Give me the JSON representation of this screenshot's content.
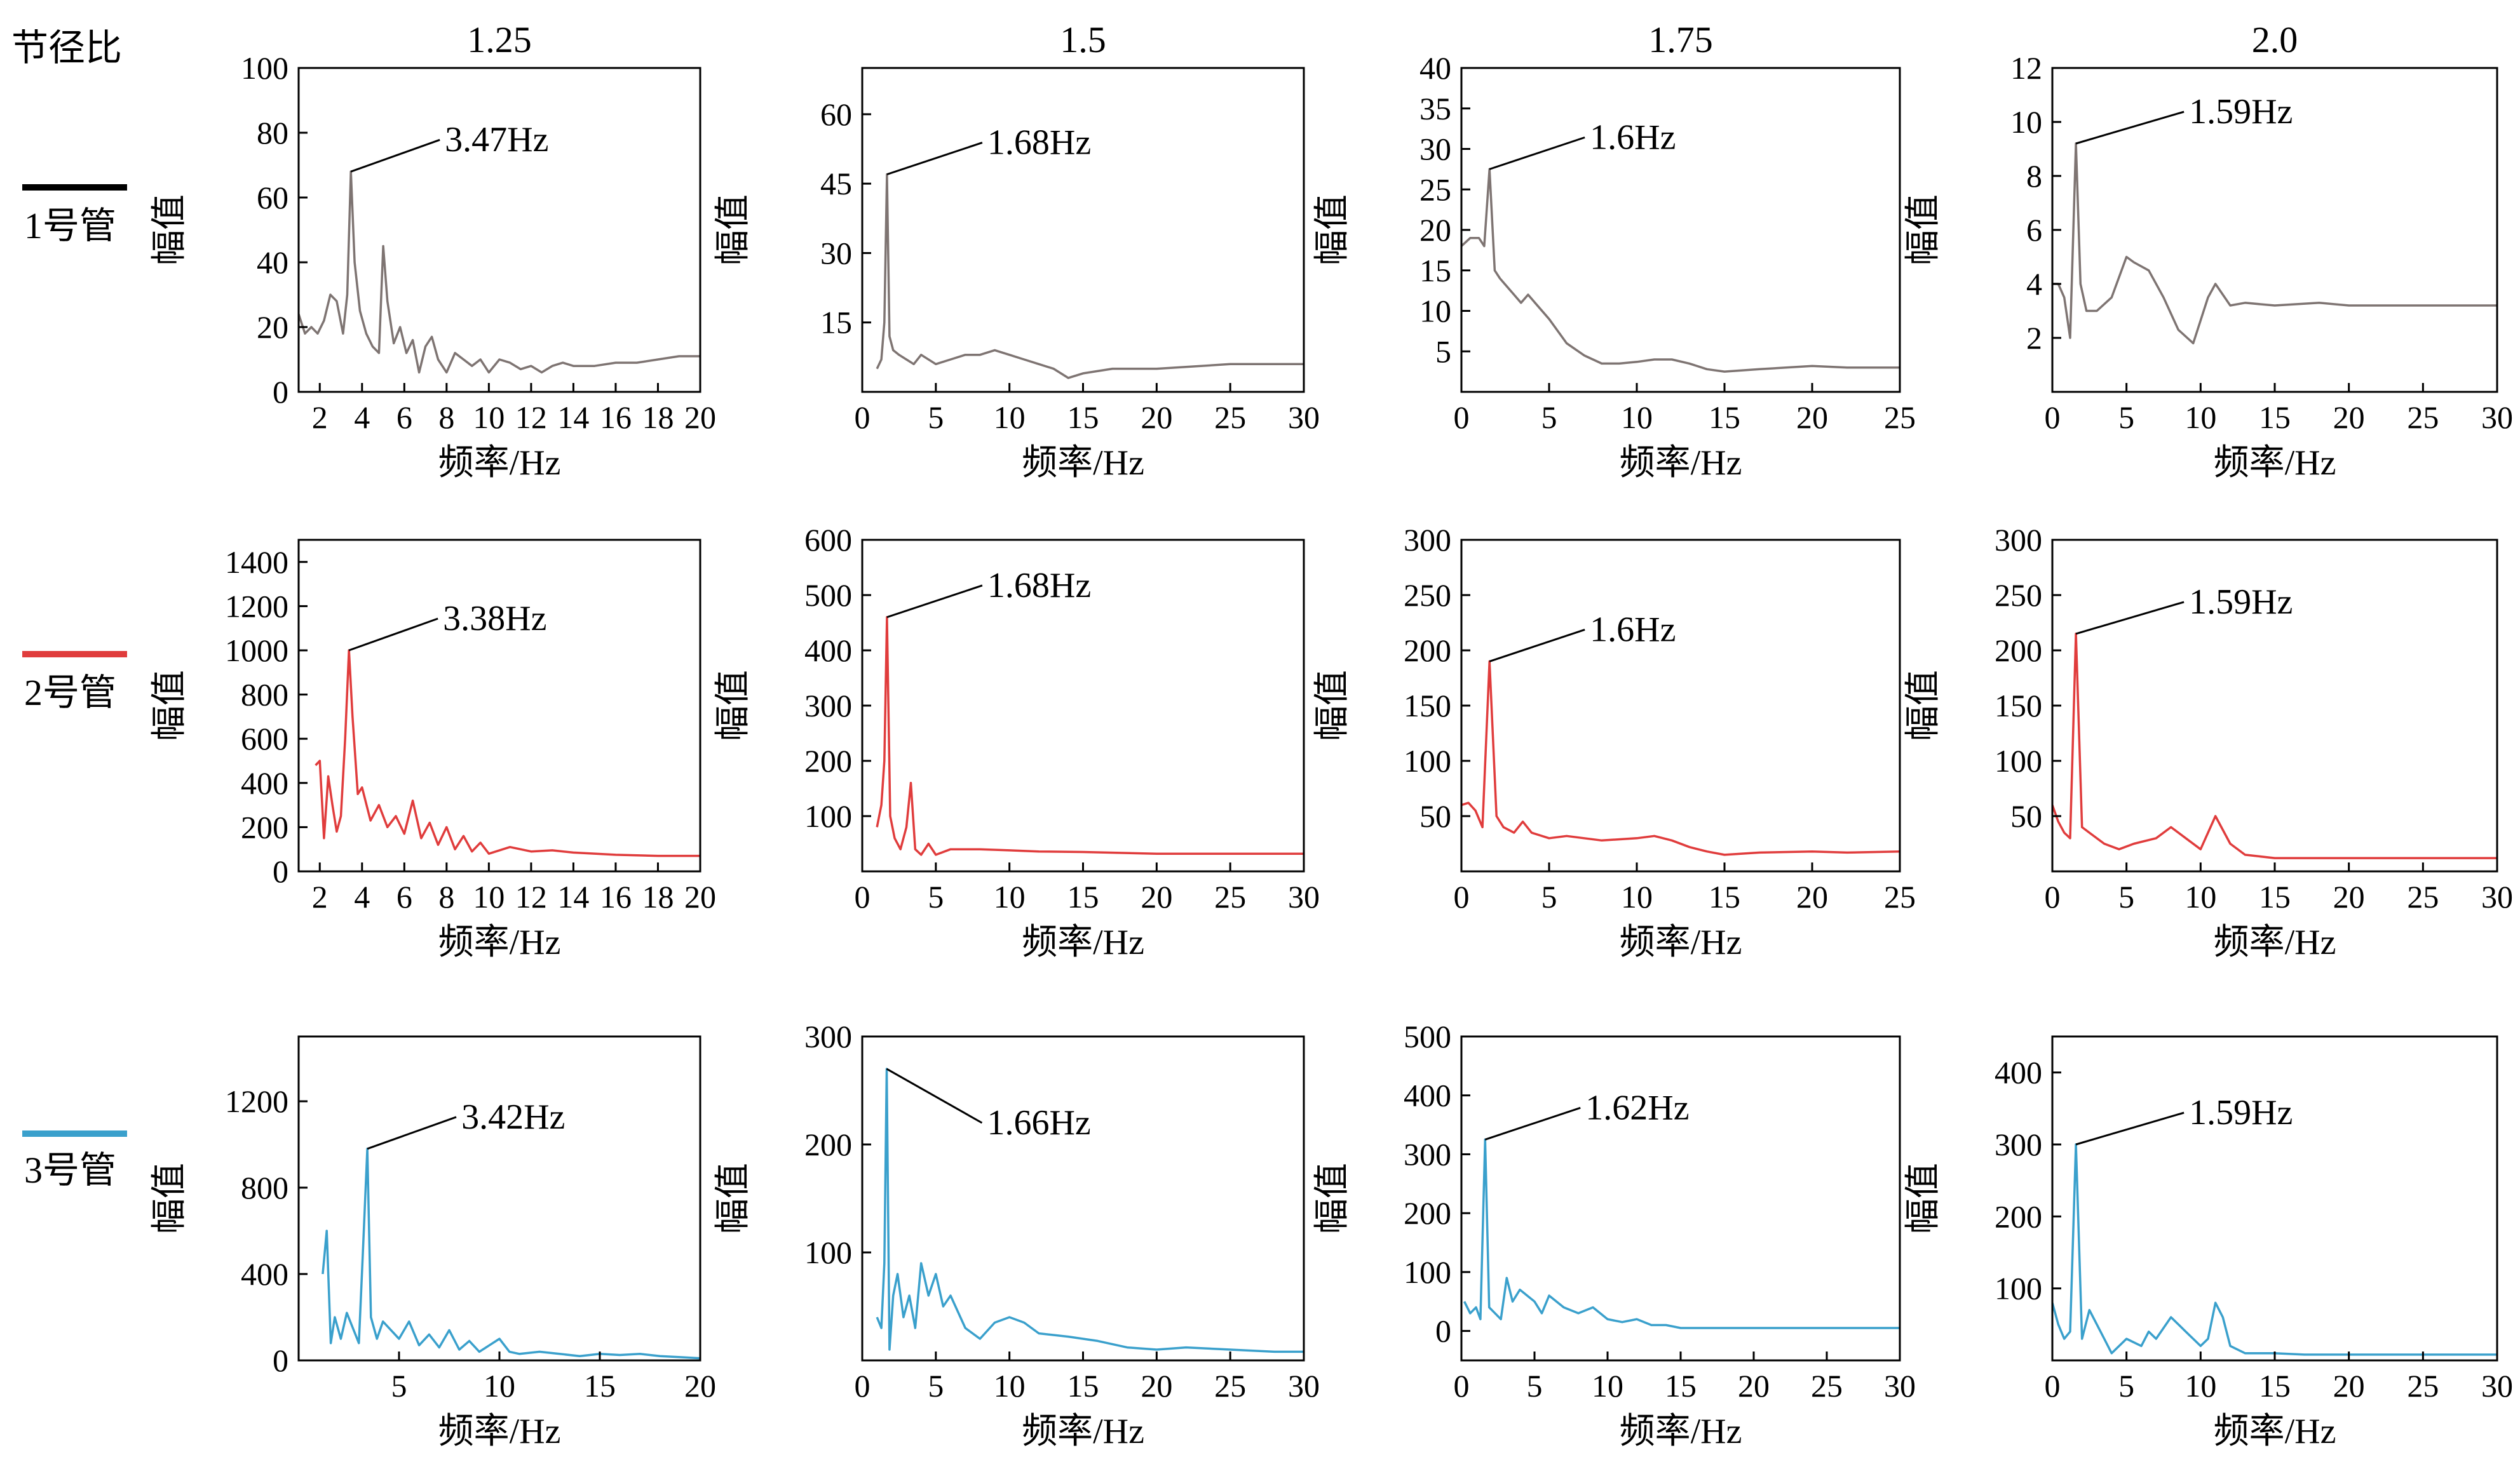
{
  "legend_title": "节径比",
  "rows": [
    {
      "name": "1号管",
      "color": "#7e7472",
      "legend_color": "#000000"
    },
    {
      "name": "2号管",
      "color": "#e03c3c",
      "legend_color": "#e03c3c"
    },
    {
      "name": "3号管",
      "color": "#3aa0cc",
      "legend_color": "#3aa0cc"
    }
  ],
  "columns": [
    "1.25",
    "1.5",
    "1.75",
    "2.0"
  ],
  "xlabel": "频率/Hz",
  "ylabel": "幅值",
  "chart_data": [
    {
      "type": "line",
      "row": 0,
      "col": 0,
      "title": "1.25",
      "series_name": "1号管",
      "xlabel": "频率/Hz",
      "ylabel": "幅值",
      "xlim": [
        1,
        20
      ],
      "ylim": [
        0,
        100
      ],
      "xticks": [
        2,
        4,
        6,
        8,
        10,
        12,
        14,
        16,
        18,
        20
      ],
      "yticks": [
        0,
        20,
        40,
        60,
        80,
        100
      ],
      "peak": {
        "x": 3.47,
        "y": 68,
        "label": "3.47Hz"
      },
      "x": [
        1,
        1.3,
        1.6,
        1.9,
        2.2,
        2.5,
        2.8,
        3.1,
        3.3,
        3.47,
        3.65,
        3.9,
        4.2,
        4.5,
        4.8,
        5.0,
        5.2,
        5.5,
        5.8,
        6.1,
        6.4,
        6.7,
        7.0,
        7.3,
        7.6,
        8.0,
        8.4,
        8.8,
        9.2,
        9.6,
        10,
        10.5,
        11,
        11.5,
        12,
        12.5,
        13,
        13.5,
        14,
        15,
        16,
        17,
        18,
        19,
        20
      ],
      "y": [
        24,
        18,
        20,
        18,
        22,
        30,
        28,
        18,
        30,
        68,
        40,
        25,
        18,
        14,
        12,
        45,
        28,
        15,
        20,
        12,
        16,
        6,
        14,
        17,
        10,
        6,
        12,
        10,
        8,
        10,
        6,
        10,
        9,
        7,
        8,
        6,
        8,
        9,
        8,
        8,
        9,
        9,
        10,
        11,
        11
      ]
    },
    {
      "type": "line",
      "row": 0,
      "col": 1,
      "title": "1.5",
      "series_name": "1号管",
      "xlabel": "频率/Hz",
      "ylabel": "幅值",
      "xlim": [
        0,
        30
      ],
      "ylim": [
        0,
        70
      ],
      "xticks": [
        0,
        5,
        10,
        15,
        20,
        25,
        30
      ],
      "yticks": [
        15,
        30,
        45,
        60
      ],
      "peak": {
        "x": 1.68,
        "y": 47,
        "label": "1.68Hz"
      },
      "x": [
        1,
        1.3,
        1.5,
        1.68,
        1.85,
        2.1,
        2.5,
        3.0,
        3.5,
        4.0,
        5.0,
        6.0,
        7.0,
        8.0,
        9.0,
        10,
        11,
        12,
        13,
        14,
        15,
        17,
        20,
        25,
        30
      ],
      "y": [
        5,
        7,
        15,
        47,
        12,
        9,
        8,
        7,
        6,
        8,
        6,
        7,
        8,
        8,
        9,
        8,
        7,
        6,
        5,
        3,
        4,
        5,
        5,
        6,
        6
      ]
    },
    {
      "type": "line",
      "row": 0,
      "col": 2,
      "title": "1.75",
      "series_name": "1号管",
      "xlabel": "频率/Hz",
      "ylabel": "幅值",
      "xlim": [
        0,
        25
      ],
      "ylim": [
        0,
        40
      ],
      "xticks": [
        0,
        5,
        10,
        15,
        20,
        25
      ],
      "yticks": [
        5,
        10,
        15,
        20,
        25,
        30,
        35,
        40
      ],
      "peak": {
        "x": 1.6,
        "y": 27.5,
        "label": "1.6Hz"
      },
      "x": [
        0,
        0.5,
        1.0,
        1.3,
        1.6,
        1.9,
        2.2,
        2.6,
        3.0,
        3.4,
        3.8,
        4.2,
        5,
        6,
        7,
        8,
        9,
        10,
        11,
        12,
        13,
        14,
        15,
        17,
        20,
        22,
        25
      ],
      "y": [
        18,
        19,
        19,
        18,
        27.5,
        15,
        14,
        13,
        12,
        11,
        12,
        11,
        9,
        6,
        4.5,
        3.5,
        3.5,
        3.7,
        4,
        4,
        3.5,
        2.8,
        2.5,
        2.8,
        3.2,
        3,
        3
      ]
    },
    {
      "type": "line",
      "row": 0,
      "col": 3,
      "title": "2.0",
      "series_name": "1号管",
      "xlabel": "频率/Hz",
      "ylabel": "幅值",
      "xlim": [
        0,
        30
      ],
      "ylim": [
        0,
        12
      ],
      "xticks": [
        0,
        5,
        10,
        15,
        20,
        25,
        30
      ],
      "yticks": [
        2,
        4,
        6,
        8,
        10,
        12
      ],
      "peak": {
        "x": 1.59,
        "y": 9.2,
        "label": "1.59Hz"
      },
      "x": [
        0,
        0.4,
        0.8,
        1.2,
        1.59,
        1.9,
        2.3,
        3.0,
        4.0,
        5.0,
        5.5,
        6.5,
        7.5,
        8.5,
        9.5,
        10.5,
        11,
        12,
        13,
        15,
        18,
        20,
        25,
        30
      ],
      "y": [
        4,
        4,
        3.5,
        2,
        9.2,
        4,
        3,
        3,
        3.5,
        5,
        4.8,
        4.5,
        3.5,
        2.3,
        1.8,
        3.5,
        4,
        3.2,
        3.3,
        3.2,
        3.3,
        3.2,
        3.2,
        3.2
      ]
    },
    {
      "type": "line",
      "row": 1,
      "col": 0,
      "title": "",
      "series_name": "2号管",
      "xlabel": "频率/Hz",
      "ylabel": "幅值",
      "xlim": [
        1,
        20
      ],
      "ylim": [
        0,
        1500
      ],
      "xticks": [
        2,
        4,
        6,
        8,
        10,
        12,
        14,
        16,
        18,
        20
      ],
      "yticks": [
        0,
        200,
        400,
        600,
        800,
        1000,
        1200,
        1400
      ],
      "peak": {
        "x": 3.38,
        "y": 1000,
        "label": "3.38Hz"
      },
      "x": [
        1.8,
        2.0,
        2.2,
        2.4,
        2.6,
        2.8,
        3.0,
        3.2,
        3.38,
        3.55,
        3.8,
        4.0,
        4.4,
        4.8,
        5.2,
        5.6,
        6.0,
        6.4,
        6.8,
        7.2,
        7.6,
        8.0,
        8.4,
        8.8,
        9.2,
        9.6,
        10,
        11,
        12,
        13,
        14,
        16,
        18,
        20
      ],
      "y": [
        480,
        500,
        150,
        430,
        300,
        180,
        250,
        600,
        1000,
        700,
        350,
        380,
        230,
        300,
        200,
        250,
        170,
        320,
        150,
        220,
        120,
        200,
        100,
        160,
        90,
        130,
        80,
        110,
        90,
        95,
        85,
        75,
        70,
        70
      ]
    },
    {
      "type": "line",
      "row": 1,
      "col": 1,
      "title": "",
      "series_name": "2号管",
      "xlabel": "频率/Hz",
      "ylabel": "幅值",
      "xlim": [
        0,
        30
      ],
      "ylim": [
        0,
        600
      ],
      "xticks": [
        0,
        5,
        10,
        15,
        20,
        25,
        30
      ],
      "yticks": [
        100,
        200,
        300,
        400,
        500,
        600
      ],
      "peak": {
        "x": 1.68,
        "y": 460,
        "label": "1.68Hz"
      },
      "x": [
        1,
        1.3,
        1.5,
        1.68,
        1.9,
        2.2,
        2.6,
        3.0,
        3.3,
        3.6,
        4.0,
        4.5,
        5.0,
        6,
        8,
        10,
        12,
        15,
        20,
        25,
        30
      ],
      "y": [
        80,
        120,
        200,
        460,
        100,
        60,
        40,
        80,
        160,
        40,
        30,
        50,
        30,
        40,
        40,
        38,
        36,
        35,
        32,
        32,
        32
      ]
    },
    {
      "type": "line",
      "row": 1,
      "col": 2,
      "title": "",
      "series_name": "2号管",
      "xlabel": "频率/Hz",
      "ylabel": "幅值",
      "xlim": [
        0,
        25
      ],
      "ylim": [
        0,
        300
      ],
      "xticks": [
        0,
        5,
        10,
        15,
        20,
        25
      ],
      "yticks": [
        50,
        100,
        150,
        200,
        250,
        300
      ],
      "peak": {
        "x": 1.6,
        "y": 190,
        "label": "1.6Hz"
      },
      "x": [
        0,
        0.4,
        0.8,
        1.2,
        1.6,
        2.0,
        2.4,
        3.0,
        3.5,
        4,
        5,
        6,
        8,
        10,
        11,
        12,
        13,
        14,
        15,
        17,
        20,
        22,
        25
      ],
      "y": [
        60,
        62,
        55,
        40,
        190,
        50,
        40,
        35,
        45,
        35,
        30,
        32,
        28,
        30,
        32,
        28,
        22,
        18,
        15,
        17,
        18,
        17,
        18
      ]
    },
    {
      "type": "line",
      "row": 1,
      "col": 3,
      "title": "",
      "series_name": "2号管",
      "xlabel": "频率/Hz",
      "ylabel": "幅值",
      "xlim": [
        0,
        30
      ],
      "ylim": [
        0,
        300
      ],
      "xticks": [
        0,
        5,
        10,
        15,
        20,
        25,
        30
      ],
      "yticks": [
        50,
        100,
        150,
        200,
        250,
        300
      ],
      "peak": {
        "x": 1.59,
        "y": 215,
        "label": "1.59Hz"
      },
      "x": [
        0,
        0.4,
        0.8,
        1.2,
        1.59,
        2.0,
        2.5,
        3.5,
        4.5,
        5.5,
        7,
        8,
        9,
        10,
        11,
        12,
        13,
        15,
        20,
        25,
        30
      ],
      "y": [
        60,
        45,
        35,
        30,
        215,
        40,
        35,
        25,
        20,
        25,
        30,
        40,
        30,
        20,
        50,
        25,
        15,
        12,
        12,
        12,
        12
      ]
    },
    {
      "type": "line",
      "row": 2,
      "col": 0,
      "title": "",
      "series_name": "3号管",
      "xlabel": "频率/Hz",
      "ylabel": "幅值",
      "xlim": [
        0,
        20
      ],
      "ylim": [
        0,
        1500
      ],
      "xticks": [
        5,
        10,
        15,
        20
      ],
      "yticks": [
        0,
        400,
        800,
        1200
      ],
      "peak": {
        "x": 3.42,
        "y": 980,
        "label": "3.42Hz"
      },
      "x": [
        1.2,
        1.4,
        1.6,
        1.8,
        2.1,
        2.4,
        2.7,
        3.0,
        3.2,
        3.42,
        3.6,
        3.9,
        4.2,
        4.6,
        5.0,
        5.5,
        6,
        6.5,
        7,
        7.5,
        8,
        8.5,
        9,
        9.5,
        10,
        10.5,
        11,
        12,
        13,
        14,
        15,
        16,
        17,
        18,
        19,
        20
      ],
      "y": [
        400,
        600,
        80,
        200,
        100,
        220,
        150,
        80,
        500,
        980,
        200,
        100,
        180,
        140,
        100,
        180,
        70,
        120,
        60,
        140,
        50,
        90,
        40,
        70,
        100,
        40,
        30,
        40,
        30,
        20,
        30,
        25,
        30,
        20,
        15,
        10
      ]
    },
    {
      "type": "line",
      "row": 2,
      "col": 1,
      "title": "",
      "series_name": "3号管",
      "xlabel": "频率/Hz",
      "ylabel": "幅值",
      "xlim": [
        0,
        30
      ],
      "ylim": [
        0,
        300
      ],
      "xticks": [
        0,
        5,
        10,
        15,
        20,
        25,
        30
      ],
      "yticks": [
        100,
        200,
        300
      ],
      "peak": {
        "x": 1.66,
        "y": 270,
        "label": "1.66Hz"
      },
      "x": [
        1,
        1.3,
        1.5,
        1.66,
        1.85,
        2.1,
        2.4,
        2.8,
        3.2,
        3.6,
        4.0,
        4.5,
        5.0,
        5.5,
        6,
        7,
        8,
        9,
        10,
        11,
        12,
        14,
        16,
        18,
        20,
        22,
        25,
        28,
        30
      ],
      "y": [
        40,
        30,
        90,
        270,
        10,
        60,
        80,
        40,
        60,
        30,
        90,
        60,
        80,
        50,
        60,
        30,
        20,
        35,
        40,
        35,
        25,
        22,
        18,
        12,
        10,
        12,
        10,
        8,
        8
      ]
    },
    {
      "type": "line",
      "row": 2,
      "col": 2,
      "title": "",
      "series_name": "3号管",
      "xlabel": "频率/Hz",
      "ylabel": "幅值",
      "xlim": [
        0,
        30
      ],
      "ylim": [
        -50,
        500
      ],
      "xticks": [
        0,
        5,
        10,
        15,
        20,
        25,
        30
      ],
      "yticks": [
        0,
        100,
        200,
        300,
        400,
        500
      ],
      "peak": {
        "x": 1.62,
        "y": 325,
        "label": "1.62Hz"
      },
      "x": [
        0.2,
        0.6,
        1.0,
        1.3,
        1.62,
        1.9,
        2.3,
        2.7,
        3.1,
        3.5,
        4,
        4.5,
        5,
        5.5,
        6,
        7,
        8,
        9,
        10,
        11,
        12,
        13,
        14,
        15,
        17,
        20,
        25,
        30
      ],
      "y": [
        50,
        30,
        40,
        20,
        325,
        40,
        30,
        20,
        90,
        50,
        70,
        60,
        50,
        30,
        60,
        40,
        30,
        40,
        20,
        15,
        20,
        10,
        10,
        5,
        5,
        5,
        5,
        5
      ]
    },
    {
      "type": "line",
      "row": 2,
      "col": 3,
      "title": "",
      "series_name": "3号管",
      "xlabel": "频率/Hz",
      "ylabel": "幅值",
      "xlim": [
        0,
        30
      ],
      "ylim": [
        0,
        450
      ],
      "xticks": [
        0,
        5,
        10,
        15,
        20,
        25,
        30
      ],
      "yticks": [
        100,
        200,
        300,
        400
      ],
      "peak": {
        "x": 1.59,
        "y": 300,
        "label": "1.59Hz"
      },
      "x": [
        0,
        0.4,
        0.8,
        1.2,
        1.59,
        2.0,
        2.5,
        3.0,
        3.5,
        4,
        5,
        6,
        6.5,
        7,
        8,
        9,
        10,
        10.5,
        11,
        11.5,
        12,
        13,
        15,
        17,
        20,
        25,
        30
      ],
      "y": [
        80,
        50,
        30,
        40,
        300,
        30,
        70,
        50,
        30,
        10,
        30,
        20,
        40,
        30,
        60,
        40,
        20,
        30,
        80,
        60,
        20,
        10,
        10,
        8,
        8,
        8,
        8
      ]
    }
  ]
}
